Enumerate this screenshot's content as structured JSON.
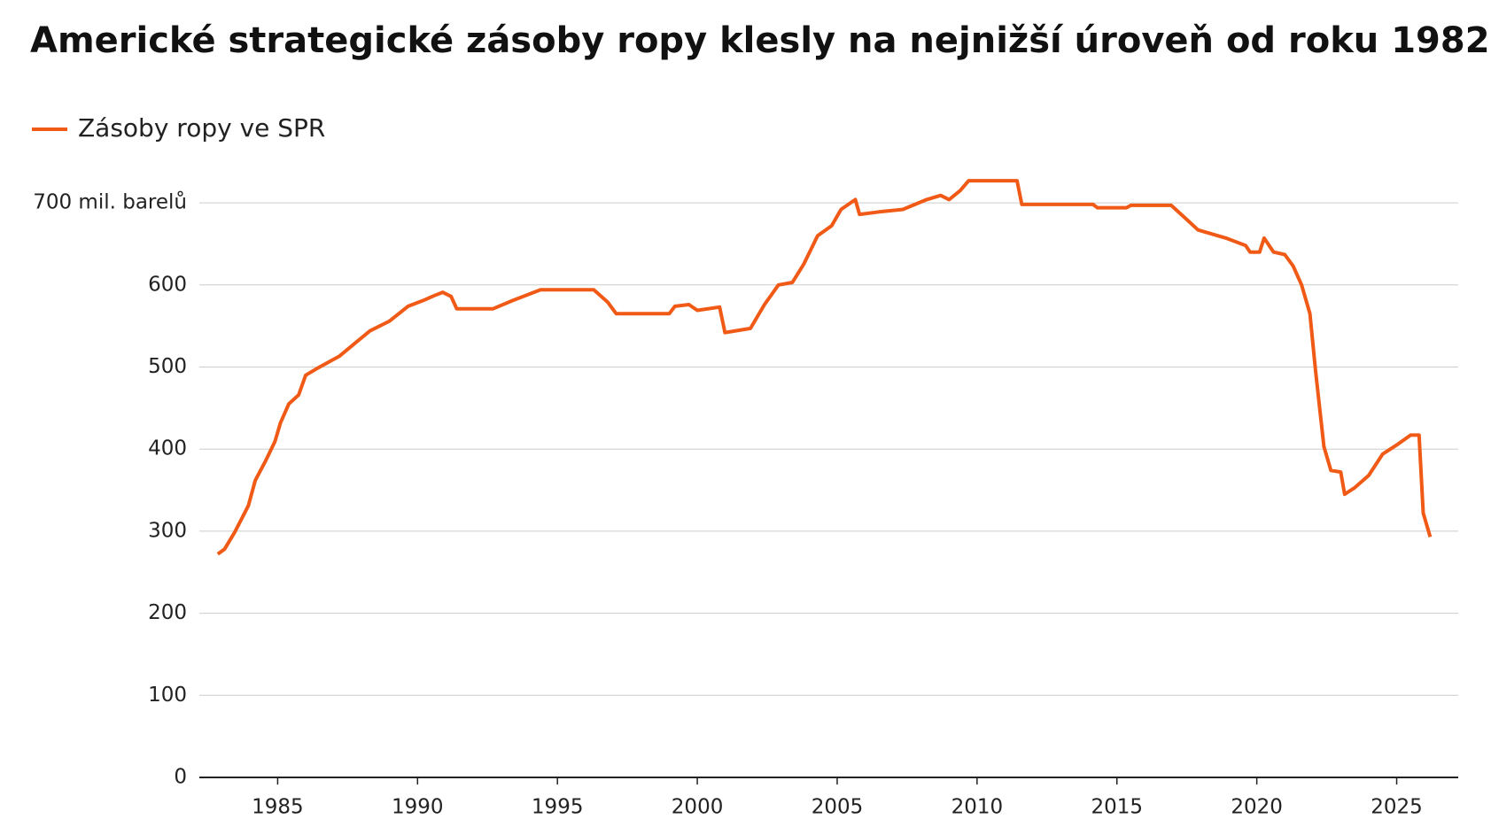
{
  "chart_data": {
    "type": "line",
    "title": "Americké strategické zásoby ropy klesly na nejnižší úroveň od roku 1982",
    "series": [
      {
        "name": "Zásoby ropy ve SPR",
        "color": "#f05a16",
        "x": [
          1982.86,
          1983.1,
          1983.47,
          1983.95,
          1984.2,
          1984.56,
          1984.9,
          1985.1,
          1985.4,
          1985.75,
          1986.0,
          1986.4,
          1987.2,
          1987.8,
          1988.3,
          1989.0,
          1989.66,
          1990.2,
          1990.6,
          1990.9,
          1991.2,
          1991.4,
          1992.7,
          1993.4,
          1994.4,
          1996.3,
          1996.8,
          1997.1,
          1999.0,
          1999.2,
          1999.7,
          2000.0,
          2000.8,
          2000.99,
          2001.9,
          2002.4,
          2002.9,
          2003.4,
          2003.8,
          2004.3,
          2004.8,
          2005.14,
          2005.65,
          2005.8,
          2006.5,
          2007.35,
          2008.2,
          2008.7,
          2009.0,
          2009.4,
          2009.7,
          2011.43,
          2011.6,
          2014.15,
          2014.3,
          2015.34,
          2015.5,
          2016.94,
          2017.55,
          2017.9,
          2018.9,
          2019.6,
          2019.76,
          2020.1,
          2020.26,
          2020.6,
          2021.0,
          2021.3,
          2021.6,
          2021.9,
          2022.1,
          2022.4,
          2022.65,
          2023.0,
          2023.14,
          2023.5,
          2024.0,
          2024.5,
          2025.0,
          2025.5,
          2025.8,
          2025.95,
          2026.2
        ],
        "values": [
          272,
          278,
          299,
          331,
          362,
          385,
          409,
          432,
          455,
          466,
          490,
          498,
          513,
          530,
          544,
          556,
          574,
          581,
          587,
          591,
          586,
          571,
          571,
          581,
          594,
          594,
          579,
          565,
          565,
          574,
          576,
          569,
          573,
          542,
          547,
          576,
          600,
          603,
          625,
          660,
          672,
          692,
          704,
          686,
          689,
          692,
          704,
          709,
          704,
          715,
          727,
          727,
          698,
          698,
          694,
          694,
          697,
          697,
          678,
          667,
          657,
          648,
          640,
          640,
          657,
          640,
          637,
          623,
          600,
          565,
          495,
          403,
          374,
          372,
          345,
          353,
          368,
          394,
          405,
          417,
          417,
          322,
          293
        ]
      }
    ],
    "xlim": [
      1982.2,
      2027.2
    ],
    "xticks": [
      1985,
      1990,
      1995,
      2000,
      2005,
      2010,
      2015,
      2020,
      2025
    ],
    "ylim": [
      0,
      740
    ],
    "yticks": [
      0,
      100,
      200,
      300,
      400,
      500,
      600,
      {
        "value": 700,
        "label": "700 mil. barelů"
      }
    ],
    "grid": true
  }
}
